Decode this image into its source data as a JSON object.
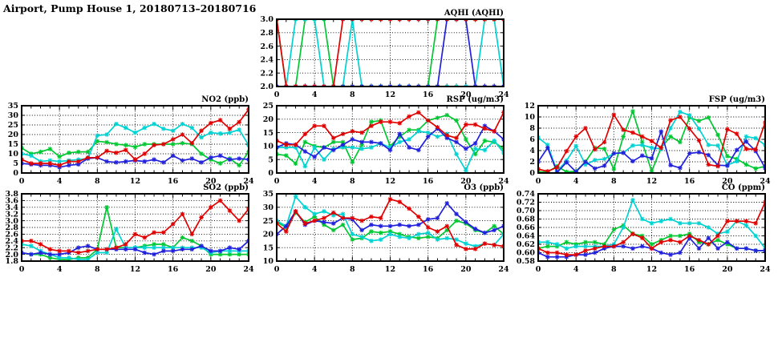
{
  "page_title": "Airport, Pump House 1, 20180713–20180716",
  "series_colors": {
    "red": "#e10000",
    "green": "#00c832",
    "cyan": "#00d2d2",
    "blue": "#2020dd"
  },
  "axis_color": "#000000",
  "x_axis": {
    "min": 0,
    "max": 24,
    "tick_labels": [
      "0",
      "4",
      "8",
      "12",
      "16",
      "20",
      "24"
    ],
    "tick_values": [
      0,
      4,
      8,
      12,
      16,
      20,
      24
    ],
    "minor_step": 1
  },
  "chart_data": [
    {
      "id": "aqhi",
      "type": "line",
      "title": "AQHI (AQHI)",
      "ylim": [
        2.0,
        3.0
      ],
      "y_ticks": [
        2.0,
        2.2,
        2.4,
        2.6,
        2.8,
        3.0
      ],
      "y_tick_labels": [
        "2.0",
        "2.2",
        "2.4",
        "2.6",
        "2.8",
        "3.0"
      ],
      "series": [
        {
          "name": "red",
          "color": "red",
          "values": [
            3,
            2,
            2,
            2,
            2,
            2,
            2,
            3,
            3,
            3,
            3,
            3,
            3,
            3,
            3,
            3,
            3,
            3,
            3,
            3,
            3,
            3,
            3,
            3,
            3
          ]
        },
        {
          "name": "green",
          "color": "green",
          "values": [
            3,
            2,
            2,
            3,
            3,
            3,
            2,
            2,
            2,
            2,
            2,
            2,
            2,
            2,
            2,
            2,
            2,
            3,
            3,
            3,
            3,
            3,
            3,
            3,
            3
          ]
        },
        {
          "name": "cyan",
          "color": "cyan",
          "values": [
            2,
            2,
            3,
            3,
            3,
            2,
            2,
            2,
            3,
            2,
            2,
            2,
            2,
            2,
            2,
            2,
            2,
            2,
            2,
            2,
            2,
            2,
            3,
            3,
            2
          ]
        },
        {
          "name": "blue",
          "color": "blue",
          "values": [
            2,
            2,
            2,
            2,
            2,
            2,
            2,
            2,
            2,
            2,
            2,
            2,
            2,
            2,
            2,
            2,
            2,
            2,
            3,
            3,
            3,
            2,
            2,
            2,
            2
          ]
        }
      ]
    },
    {
      "id": "no2",
      "type": "line",
      "title": "NO2 (ppb)",
      "ylim": [
        0,
        35
      ],
      "y_ticks": [
        0,
        5,
        10,
        15,
        20,
        25,
        30,
        35
      ],
      "y_tick_labels": [
        "0",
        "5",
        "10",
        "15",
        "20",
        "25",
        "30",
        "35"
      ],
      "series": [
        {
          "name": "red",
          "color": "red",
          "values": [
            7,
            5,
            5,
            5,
            4,
            6,
            6,
            8,
            8,
            11.5,
            10.5,
            12,
            7,
            10,
            14.5,
            15,
            17.5,
            20,
            15.5,
            22,
            26,
            27.5,
            23,
            26.5,
            33
          ]
        },
        {
          "name": "green",
          "color": "green",
          "values": [
            13,
            10,
            11,
            12.5,
            8.5,
            10.5,
            11,
            11,
            16.5,
            16,
            15,
            14.5,
            13.5,
            15,
            15,
            15,
            15,
            15.5,
            15,
            10,
            7,
            5,
            7.5,
            4,
            11
          ]
        },
        {
          "name": "cyan",
          "color": "cyan",
          "values": [
            10,
            9,
            6,
            6.5,
            6,
            6.5,
            7,
            7.5,
            19.5,
            20,
            25.5,
            23.5,
            21,
            23.5,
            25.5,
            23,
            22,
            25.5,
            23.5,
            18.5,
            21,
            20.5,
            21,
            22.5,
            14.5
          ]
        },
        {
          "name": "blue",
          "color": "blue",
          "values": [
            5,
            4.5,
            4,
            4,
            3,
            4,
            4.5,
            7.5,
            8,
            6,
            5.5,
            6,
            6.5,
            6,
            7,
            5.5,
            9,
            6.5,
            7.5,
            5.5,
            8,
            9,
            7,
            7.5,
            7
          ]
        }
      ]
    },
    {
      "id": "rsp",
      "type": "line",
      "title": "RSP (ug/m3)",
      "ylim": [
        0,
        25
      ],
      "y_ticks": [
        0,
        5,
        10,
        15,
        20,
        25
      ],
      "y_tick_labels": [
        "0",
        "5",
        "10",
        "15",
        "20",
        "25"
      ],
      "series": [
        {
          "name": "red",
          "color": "red",
          "values": [
            12,
            10.5,
            10.5,
            14.5,
            17.5,
            17.5,
            13,
            14.5,
            15.5,
            15,
            17.5,
            19,
            19,
            18.5,
            21,
            22.5,
            19.5,
            17,
            14,
            13,
            18,
            18,
            16.5,
            15.5,
            22.5
          ]
        },
        {
          "name": "green",
          "color": "green",
          "values": [
            7,
            6.5,
            3.5,
            11.5,
            10,
            9.5,
            11.5,
            11.5,
            4,
            10.5,
            19,
            19.5,
            10,
            13.5,
            16,
            16,
            19.5,
            20.5,
            21.5,
            19.5,
            12.5,
            7,
            12,
            11.5,
            9
          ]
        },
        {
          "name": "cyan",
          "color": "cyan",
          "values": [
            9.5,
            9.5,
            9.5,
            2.5,
            9.5,
            5,
            9,
            9.5,
            9.5,
            9,
            9.5,
            11,
            9.5,
            11.5,
            12.5,
            15.5,
            15,
            13.5,
            14.5,
            7,
            1,
            9,
            8.5,
            12,
            7.5
          ]
        },
        {
          "name": "blue",
          "color": "blue",
          "values": [
            9.5,
            11,
            10.5,
            8,
            6,
            9.5,
            8.5,
            10.5,
            12.5,
            11.5,
            11.5,
            11,
            8.5,
            14.5,
            9.5,
            8.5,
            13.5,
            16.5,
            13,
            11.5,
            9,
            11,
            17.5,
            15.5,
            12.5
          ]
        }
      ]
    },
    {
      "id": "fsp",
      "type": "line",
      "title": "FSP (ug/m3)",
      "ylim": [
        0,
        12
      ],
      "y_ticks": [
        0,
        2,
        4,
        6,
        8,
        10,
        12
      ],
      "y_tick_labels": [
        "0",
        "2",
        "4",
        "6",
        "8",
        "10",
        "12"
      ],
      "series": [
        {
          "name": "red",
          "color": "red",
          "values": [
            0.7,
            0.3,
            1,
            3.9,
            6.5,
            8,
            4.2,
            5.5,
            10.4,
            7.7,
            7.2,
            6.5,
            5.7,
            4.5,
            9.4,
            10,
            7.9,
            5.8,
            1.5,
            1.2,
            7.8,
            7,
            4.3,
            4.2,
            9
          ]
        },
        {
          "name": "green",
          "color": "green",
          "values": [
            0.2,
            0.2,
            1.2,
            0.2,
            0.3,
            2,
            4.5,
            4.3,
            0.7,
            6.5,
            11,
            5.5,
            0.3,
            4.5,
            6.5,
            5.5,
            9.9,
            9.3,
            9.9,
            6.8,
            3,
            2.5,
            1.5,
            0.8,
            1.2
          ]
        },
        {
          "name": "cyan",
          "color": "cyan",
          "values": [
            6.3,
            5,
            0.3,
            2.2,
            4.8,
            1.5,
            2.3,
            2.5,
            3.5,
            3.6,
            4.9,
            5,
            4.5,
            4.3,
            8,
            10.9,
            10.3,
            7.9,
            5,
            4.9,
            1.4,
            2.1,
            6.5,
            6.2,
            5
          ]
        },
        {
          "name": "blue",
          "color": "blue",
          "values": [
            2,
            4.5,
            0.1,
            1.9,
            0.2,
            2,
            0.8,
            1.3,
            3.5,
            3.6,
            2.1,
            3.1,
            2.6,
            7.4,
            1.4,
            0.9,
            3.5,
            3.7,
            3.2,
            1.4,
            1.3,
            4.1,
            5.6,
            3.9,
            0.9
          ]
        }
      ]
    },
    {
      "id": "so2",
      "type": "line",
      "title": "SO2 (ppb)",
      "ylim": [
        1.8,
        3.8
      ],
      "y_ticks": [
        1.8,
        2.0,
        2.2,
        2.4,
        2.6,
        2.8,
        3.0,
        3.2,
        3.4,
        3.6,
        3.8
      ],
      "y_tick_labels": [
        "1.8",
        "2.0",
        "2.2",
        "2.4",
        "2.6",
        "2.8",
        "3.0",
        "3.2",
        "3.4",
        "3.6",
        "3.8"
      ],
      "series": [
        {
          "name": "red",
          "color": "red",
          "values": [
            2.4,
            2.4,
            2.3,
            2.15,
            2.1,
            2.1,
            2.05,
            2.1,
            2.15,
            2.15,
            2.2,
            2.3,
            2.6,
            2.5,
            2.65,
            2.65,
            2.9,
            3.2,
            2.6,
            3.1,
            3.4,
            3.6,
            3.3,
            3.0,
            3.35
          ]
        },
        {
          "name": "green",
          "color": "green",
          "values": [
            2.05,
            2.0,
            2.0,
            1.9,
            1.85,
            1.85,
            1.9,
            1.9,
            2.15,
            3.4,
            2.2,
            2.2,
            2.2,
            2.25,
            2.3,
            2.3,
            2.2,
            2.5,
            2.4,
            2.25,
            2.0,
            2.0,
            2.0,
            2.0,
            2.0
          ]
        },
        {
          "name": "cyan",
          "color": "cyan",
          "values": [
            2.3,
            2.25,
            2.1,
            2.0,
            1.9,
            1.9,
            1.85,
            1.85,
            2.05,
            2.05,
            2.75,
            2.2,
            2.2,
            2.2,
            2.2,
            2.2,
            2.2,
            2.2,
            2.2,
            2.2,
            2.05,
            2.1,
            2.1,
            2.1,
            2.1
          ]
        },
        {
          "name": "blue",
          "color": "blue",
          "values": [
            2.05,
            2.0,
            2.05,
            2.0,
            2.0,
            2.05,
            2.2,
            2.25,
            2.15,
            2.15,
            2.15,
            2.15,
            2.15,
            2.05,
            2.0,
            2.1,
            2.1,
            2.15,
            2.15,
            2.25,
            2.1,
            2.1,
            2.2,
            2.15,
            2.4
          ]
        }
      ]
    },
    {
      "id": "o3",
      "type": "line",
      "title": "O3 (ppb)",
      "ylim": [
        10,
        35
      ],
      "y_ticks": [
        10,
        15,
        20,
        25,
        30,
        35
      ],
      "y_tick_labels": [
        "10",
        "15",
        "20",
        "25",
        "30",
        "35"
      ],
      "series": [
        {
          "name": "red",
          "color": "red",
          "values": [
            24,
            21,
            28.5,
            24,
            25,
            26,
            28,
            26,
            26,
            25,
            26.5,
            26,
            33,
            32,
            29.5,
            26.5,
            22.5,
            21,
            23,
            16,
            14.5,
            14.5,
            16.5,
            16,
            15.5
          ]
        },
        {
          "name": "green",
          "color": "green",
          "values": [
            24.5,
            22.5,
            28,
            24.5,
            26.5,
            23.5,
            21.5,
            23.5,
            18,
            18.5,
            21,
            20.5,
            21,
            20,
            19,
            18.5,
            19,
            18.5,
            21.5,
            25,
            24,
            21.5,
            20.5,
            23,
            20
          ]
        },
        {
          "name": "cyan",
          "color": "cyan",
          "values": [
            25,
            23,
            34,
            30,
            27.5,
            28.5,
            27,
            27.5,
            20,
            19,
            17.5,
            18,
            20,
            19,
            18.5,
            20,
            20.5,
            18,
            18.5,
            18,
            16.5,
            15.5,
            16.5,
            16,
            20
          ]
        },
        {
          "name": "blue",
          "color": "blue",
          "values": [
            20,
            23,
            28.5,
            23.5,
            25,
            24.5,
            24,
            26,
            25.5,
            21.5,
            23.5,
            23,
            23,
            23.5,
            23,
            23.5,
            25.5,
            26,
            31.5,
            27.5,
            24.5,
            22,
            20.5,
            21.5,
            23
          ]
        }
      ]
    },
    {
      "id": "co",
      "type": "line",
      "title": "CO (ppm)",
      "ylim": [
        0.58,
        0.74
      ],
      "y_ticks": [
        0.58,
        0.6,
        0.62,
        0.64,
        0.66,
        0.68,
        0.7,
        0.72,
        0.74
      ],
      "y_tick_labels": [
        "0.58",
        "0.60",
        "0.62",
        "0.64",
        "0.66",
        "0.68",
        "0.70",
        "0.72",
        "0.74"
      ],
      "series": [
        {
          "name": "red",
          "color": "red",
          "values": [
            0.61,
            0.6,
            0.6,
            0.595,
            0.595,
            0.605,
            0.61,
            0.615,
            0.615,
            0.625,
            0.645,
            0.635,
            0.61,
            0.625,
            0.63,
            0.625,
            0.64,
            0.63,
            0.62,
            0.64,
            0.675,
            0.675,
            0.675,
            0.67,
            0.72
          ]
        },
        {
          "name": "green",
          "color": "green",
          "values": [
            0.61,
            0.615,
            0.615,
            0.625,
            0.62,
            0.625,
            0.625,
            0.62,
            0.655,
            0.665,
            0.645,
            0.64,
            0.62,
            0.63,
            0.64,
            0.64,
            0.645,
            0.625,
            0.62,
            0.63,
            0.62,
            0.61,
            0.61,
            0.605,
            0.605
          ]
        },
        {
          "name": "cyan",
          "color": "cyan",
          "values": [
            0.625,
            0.625,
            0.62,
            0.61,
            0.615,
            0.615,
            0.615,
            0.615,
            0.62,
            0.66,
            0.725,
            0.68,
            0.67,
            0.675,
            0.68,
            0.67,
            0.67,
            0.67,
            0.66,
            0.645,
            0.65,
            0.675,
            0.665,
            0.64,
            0.61
          ]
        },
        {
          "name": "blue",
          "color": "blue",
          "values": [
            0.6,
            0.59,
            0.59,
            0.59,
            0.595,
            0.595,
            0.6,
            0.61,
            0.615,
            0.615,
            0.61,
            0.615,
            0.61,
            0.6,
            0.595,
            0.6,
            0.635,
            0.61,
            0.635,
            0.61,
            0.625,
            0.61,
            0.61,
            0.605,
            0.605
          ]
        }
      ]
    }
  ]
}
